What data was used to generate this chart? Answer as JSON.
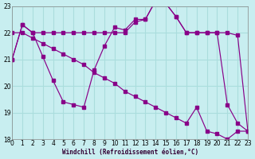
{
  "xlabel": "Windchill (Refroidissement éolien,°C)",
  "bg_color": "#c8eef0",
  "grid_color": "#aadddd",
  "line_color": "#880088",
  "xlim": [
    0,
    23
  ],
  "ylim": [
    18,
    23
  ],
  "yticks": [
    18,
    19,
    20,
    21,
    22,
    23
  ],
  "xticks": [
    0,
    1,
    2,
    3,
    4,
    5,
    6,
    7,
    8,
    9,
    10,
    11,
    12,
    13,
    14,
    15,
    16,
    17,
    18,
    19,
    20,
    21,
    22,
    23
  ],
  "curve1_x": [
    0,
    1,
    2,
    3,
    4,
    5,
    6,
    7,
    8,
    9,
    10,
    11,
    12,
    13,
    14,
    15,
    16,
    17,
    18,
    19,
    20,
    21,
    22,
    23
  ],
  "curve1_y": [
    21.0,
    22.3,
    22.0,
    22.0,
    22.0,
    22.0,
    22.0,
    22.0,
    22.0,
    22.0,
    22.0,
    22.0,
    22.4,
    22.5,
    23.2,
    23.1,
    22.6,
    22.0,
    22.0,
    22.0,
    22.0,
    22.0,
    21.9,
    18.3
  ],
  "curve2_x": [
    0,
    1,
    2,
    3,
    4,
    5,
    6,
    7,
    8,
    9,
    10,
    11,
    12,
    13,
    14,
    15,
    16,
    17,
    18,
    19,
    20,
    21,
    22,
    23
  ],
  "curve2_y": [
    21.0,
    22.3,
    22.0,
    21.1,
    20.2,
    19.4,
    19.3,
    19.2,
    20.6,
    21.5,
    22.2,
    22.1,
    22.5,
    22.5,
    23.2,
    23.1,
    22.6,
    22.0,
    22.0,
    22.0,
    22.0,
    19.3,
    18.6,
    18.3
  ],
  "curve3_x": [
    0,
    1,
    2,
    3,
    4,
    5,
    6,
    7,
    8,
    9,
    10,
    11,
    12,
    13,
    14,
    15,
    16,
    17,
    18,
    19,
    20,
    21,
    22,
    23
  ],
  "curve3_y": [
    22.0,
    22.0,
    21.8,
    21.6,
    21.4,
    21.2,
    21.0,
    20.8,
    20.5,
    20.3,
    20.1,
    19.8,
    19.6,
    19.4,
    19.2,
    19.0,
    18.8,
    18.6,
    19.2,
    18.3,
    18.2,
    18.0,
    18.3,
    18.3
  ]
}
